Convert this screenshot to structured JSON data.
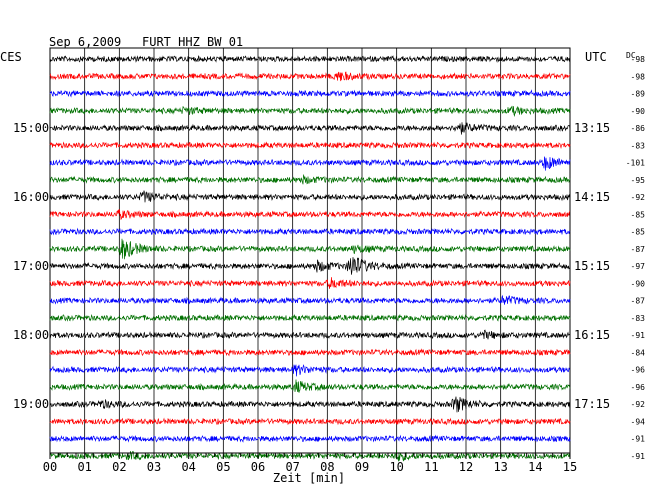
{
  "header": {
    "date": "Sep 6,2009",
    "station": "FURT HHZ BW 01",
    "left_tz": "CES",
    "right_tz": "UTC",
    "dc_label": "DC"
  },
  "colors": {
    "trace_cycle": [
      "#000000",
      "#ff0000",
      "#0000ff",
      "#007000"
    ],
    "grid": "#000000"
  },
  "chart_data": {
    "type": "line",
    "title": "Sep 6,2009   FURT HHZ BW 01",
    "xlabel": "Zeit [min]",
    "xlim": [
      0,
      15
    ],
    "x_ticks": [
      "00",
      "01",
      "02",
      "03",
      "04",
      "05",
      "06",
      "07",
      "08",
      "09",
      "10",
      "11",
      "12",
      "13",
      "14",
      "15"
    ],
    "minor_ticks_per_minute": 4,
    "grid": true,
    "left_time_labels": [
      {
        "row": 4,
        "label": "15:00"
      },
      {
        "row": 8,
        "label": "16:00"
      },
      {
        "row": 12,
        "label": "17:00"
      },
      {
        "row": 16,
        "label": "18:00"
      },
      {
        "row": 20,
        "label": "19:00"
      }
    ],
    "right_time_labels": [
      {
        "row": 4,
        "label": "13:15"
      },
      {
        "row": 8,
        "label": "14:15"
      },
      {
        "row": 12,
        "label": "15:15"
      },
      {
        "row": 16,
        "label": "16:15"
      },
      {
        "row": 20,
        "label": "17:15"
      }
    ],
    "dc_offsets": [
      -98,
      -98,
      -89,
      -90,
      -86,
      -83,
      -101,
      -95,
      -92,
      -85,
      -85,
      -87,
      -97,
      -90,
      -87,
      -83,
      -91,
      -84,
      -96,
      -96,
      -92,
      -94,
      -91,
      -91
    ],
    "events": [
      {
        "row": 1,
        "minute": 8.3,
        "amp": 0.8
      },
      {
        "row": 3,
        "minute": 13.3,
        "amp": 0.6
      },
      {
        "row": 3,
        "minute": 3.9,
        "amp": 0.5
      },
      {
        "row": 4,
        "minute": 11.8,
        "amp": 1.0
      },
      {
        "row": 6,
        "minute": 14.3,
        "amp": 1.2
      },
      {
        "row": 7,
        "minute": 7.3,
        "amp": 0.5
      },
      {
        "row": 8,
        "minute": 2.7,
        "amp": 0.9
      },
      {
        "row": 9,
        "minute": 2.0,
        "amp": 0.6
      },
      {
        "row": 11,
        "minute": 2.1,
        "amp": 2.0
      },
      {
        "row": 11,
        "minute": 8.8,
        "amp": 0.6
      },
      {
        "row": 12,
        "minute": 8.7,
        "amp": 2.2
      },
      {
        "row": 12,
        "minute": 7.7,
        "amp": 0.9
      },
      {
        "row": 13,
        "minute": 8.1,
        "amp": 0.8
      },
      {
        "row": 14,
        "minute": 13.1,
        "amp": 0.7
      },
      {
        "row": 16,
        "minute": 12.5,
        "amp": 0.6
      },
      {
        "row": 18,
        "minute": 7.1,
        "amp": 0.8
      },
      {
        "row": 19,
        "minute": 7.1,
        "amp": 1.0
      },
      {
        "row": 20,
        "minute": 11.7,
        "amp": 1.4
      },
      {
        "row": 20,
        "minute": 1.5,
        "amp": 0.6
      },
      {
        "row": 23,
        "minute": 10.0,
        "amp": 0.8
      },
      {
        "row": 23,
        "minute": 2.3,
        "amp": 0.5
      }
    ]
  }
}
